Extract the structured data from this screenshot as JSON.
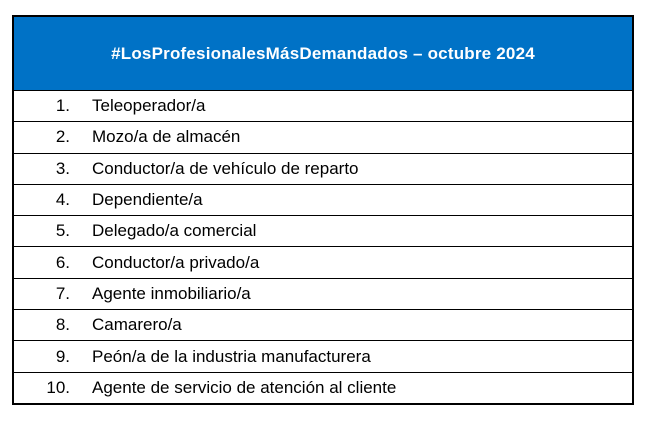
{
  "table": {
    "header": {
      "title": "#LosProfesionalesMásDemandados – octubre 2024",
      "background_color": "#0072C6",
      "text_color": "#ffffff"
    },
    "border_color": "#000000",
    "rows": [
      {
        "number": "1.",
        "label": "Teleoperador/a"
      },
      {
        "number": "2.",
        "label": "Mozo/a de almacén"
      },
      {
        "number": "3.",
        "label": "Conductor/a de vehículo de reparto"
      },
      {
        "number": "4.",
        "label": "Dependiente/a"
      },
      {
        "number": "5.",
        "label": "Delegado/a comercial"
      },
      {
        "number": "6.",
        "label": "Conductor/a privado/a"
      },
      {
        "number": "7.",
        "label": "Agente inmobiliario/a"
      },
      {
        "number": "8.",
        "label": "Camarero/a"
      },
      {
        "number": "9.",
        "label": "Peón/a de la industria manufacturera"
      },
      {
        "number": "10.",
        "label": "Agente de servicio de atención al cliente"
      }
    ]
  }
}
